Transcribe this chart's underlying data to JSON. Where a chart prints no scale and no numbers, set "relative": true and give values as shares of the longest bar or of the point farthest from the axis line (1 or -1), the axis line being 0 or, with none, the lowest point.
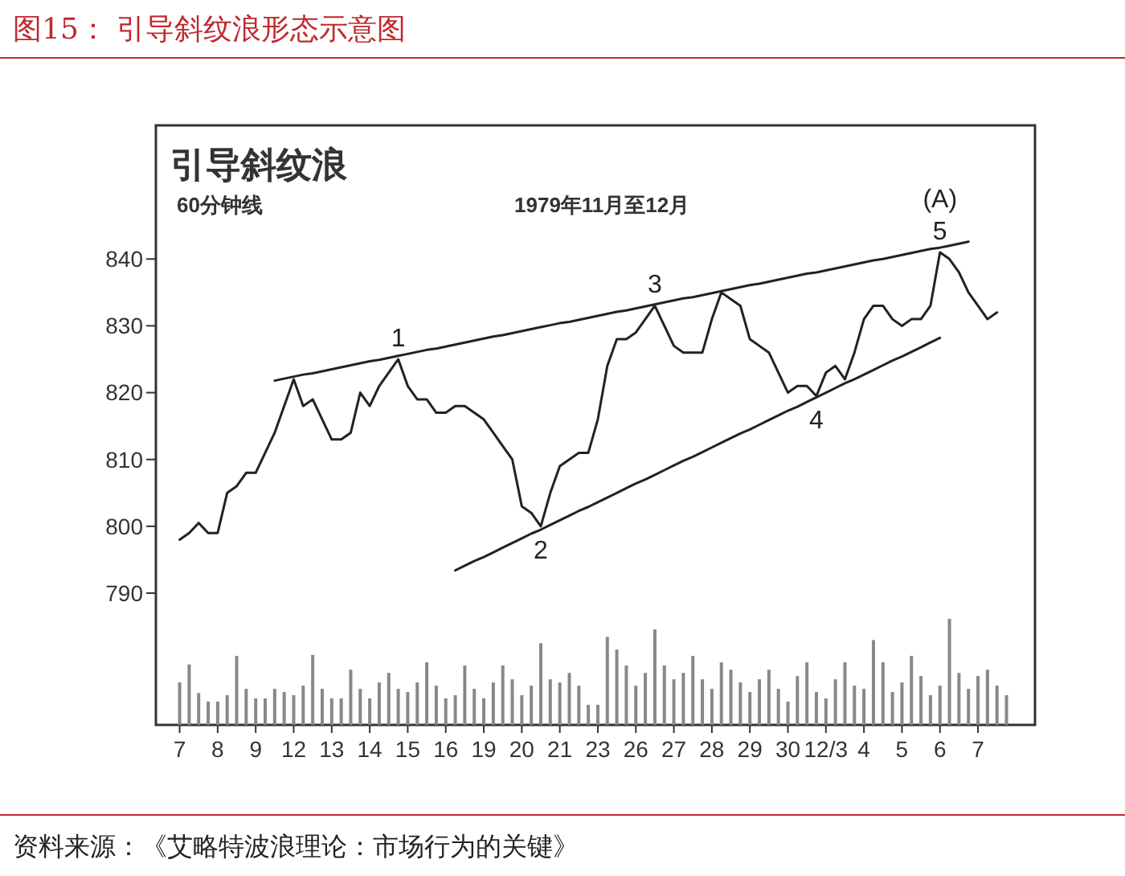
{
  "chart_data": [
    {
      "type": "line",
      "title": "图15：  引导斜纹浪形态示意图",
      "subtitle": "引导斜纹浪",
      "annotations": [
        "60分钟线",
        "1979年11月至12月",
        {
          "text": "1",
          "y": 825
        },
        {
          "text": "2",
          "y": 800
        },
        {
          "text": "3",
          "y": 833
        },
        {
          "text": "4",
          "y": 819.5
        },
        {
          "text": "5",
          "y": 841
        },
        {
          "text": "(A)",
          "y": 841
        },
        "资料来源：《艾略特波浪理论：市场行为的关键》"
      ],
      "categories": [
        "7",
        null,
        null,
        null,
        "8",
        null,
        null,
        null,
        "9",
        null,
        null,
        null,
        "12",
        null,
        null,
        null,
        "13",
        null,
        null,
        null,
        "14",
        null,
        null,
        null,
        "15",
        null,
        null,
        null,
        "16",
        null,
        null,
        null,
        "19",
        null,
        null,
        null,
        "20",
        null,
        null,
        null,
        "21",
        null,
        null,
        null,
        "23",
        null,
        null,
        null,
        "26",
        null,
        null,
        null,
        "27",
        null,
        null,
        null,
        "28",
        null,
        null,
        null,
        "29",
        null,
        null,
        null,
        "30",
        null,
        null,
        null,
        "12/3",
        null,
        null,
        null,
        "4",
        null,
        null,
        null,
        "5",
        null,
        null,
        null,
        "6",
        null,
        null,
        null,
        "7",
        null,
        null,
        null
      ],
      "ylim": [
        790,
        860
      ],
      "yticks": [
        790,
        800,
        810,
        820,
        830,
        840
      ],
      "series": [
        {
          "color": "#222222",
          "values": [
            798,
            799,
            800.5,
            799,
            799,
            805,
            806,
            808,
            808,
            811,
            814,
            818,
            822,
            818,
            819,
            816,
            813,
            813,
            814,
            820,
            818,
            821,
            823,
            825,
            821,
            819,
            819,
            817,
            817,
            818,
            818,
            817,
            816,
            814,
            812,
            810,
            803,
            802,
            800,
            805,
            809,
            810,
            811,
            811,
            816,
            824,
            828,
            828,
            829,
            831,
            833,
            830,
            827,
            826,
            826,
            826,
            831,
            835,
            834,
            833,
            828,
            827,
            826,
            823,
            820,
            821,
            821,
            819.5,
            823,
            824,
            822,
            826,
            831,
            833,
            833,
            831,
            830,
            831,
            831,
            833,
            841,
            840,
            838,
            835,
            833,
            831,
            832,
            null
          ]
        },
        {
          "color": "#222222",
          "values": [
            null,
            null,
            null,
            null,
            null,
            null,
            null,
            null,
            null,
            null,
            821.8,
            822.1,
            822.4,
            822.7,
            822.9,
            823.2,
            823.5,
            823.8,
            824.1,
            824.4,
            824.7,
            824.9,
            825.2,
            825.5,
            825.8,
            826.1,
            826.4,
            826.6,
            826.9,
            827.2,
            827.5,
            827.8,
            828.1,
            828.4,
            828.6,
            828.9,
            829.2,
            829.5,
            829.8,
            830.1,
            830.4,
            830.6,
            830.9,
            831.2,
            831.5,
            831.8,
            832.1,
            832.3,
            832.6,
            832.9,
            833.2,
            833.5,
            833.8,
            834.1,
            834.3,
            834.6,
            834.9,
            835.2,
            835.5,
            835.8,
            836.1,
            836.3,
            836.6,
            836.9,
            837.2,
            837.5,
            837.8,
            838.0,
            838.3,
            838.6,
            838.9,
            839.2,
            839.5,
            839.8,
            840.0,
            840.3,
            840.6,
            840.9,
            841.2,
            841.5,
            841.7,
            842.0,
            842.3,
            842.6,
            null,
            null,
            null,
            null
          ]
        },
        {
          "color": "#222222",
          "values": [
            null,
            null,
            null,
            null,
            null,
            null,
            null,
            null,
            null,
            null,
            null,
            null,
            null,
            null,
            null,
            null,
            null,
            null,
            null,
            null,
            null,
            null,
            null,
            null,
            null,
            null,
            null,
            null,
            null,
            793.4,
            794.1,
            794.8,
            795.4,
            796.1,
            796.8,
            797.5,
            798.2,
            798.9,
            799.5,
            800.2,
            800.9,
            801.6,
            802.3,
            802.9,
            803.6,
            804.3,
            805.0,
            805.7,
            806.4,
            807.0,
            807.7,
            808.4,
            809.1,
            809.8,
            810.4,
            811.1,
            811.8,
            812.5,
            813.2,
            813.9,
            814.5,
            815.2,
            815.9,
            816.6,
            817.3,
            817.9,
            818.6,
            819.3,
            820.0,
            820.7,
            821.4,
            822.0,
            822.7,
            823.4,
            824.1,
            824.8,
            825.4,
            826.1,
            826.8,
            827.5,
            828.2,
            null,
            null,
            null,
            null,
            null,
            null,
            null
          ]
        }
      ]
    },
    {
      "type": "bar",
      "relative": true,
      "color": "#888888",
      "categories": [
        null,
        null,
        null,
        null,
        null,
        null,
        null,
        null,
        null,
        null,
        null,
        null,
        null,
        null,
        null,
        null,
        null,
        null,
        null,
        null,
        null,
        null,
        null,
        null,
        null,
        null,
        null,
        null,
        null,
        null,
        null,
        null,
        null,
        null,
        null,
        null,
        null,
        null,
        null,
        null,
        null,
        null,
        null,
        null,
        null,
        null,
        null,
        null,
        null,
        null,
        null,
        null,
        null,
        null,
        null,
        null,
        null,
        null,
        null,
        null,
        null,
        null,
        null,
        null,
        null,
        null,
        null,
        null,
        null,
        null,
        null,
        null,
        null,
        null,
        null,
        null,
        null,
        null,
        null,
        null,
        null,
        null,
        null,
        null,
        null,
        null,
        null,
        null
      ],
      "values": [
        0.4,
        0.57,
        0.3,
        0.22,
        0.22,
        0.28,
        0.65,
        0.34,
        0.25,
        0.25,
        0.34,
        0.31,
        0.28,
        0.37,
        0.66,
        0.34,
        0.25,
        0.25,
        0.52,
        0.34,
        0.25,
        0.4,
        0.49,
        0.34,
        0.31,
        0.4,
        0.59,
        0.37,
        0.25,
        0.28,
        0.56,
        0.34,
        0.25,
        0.4,
        0.56,
        0.43,
        0.28,
        0.37,
        0.77,
        0.43,
        0.4,
        0.49,
        0.37,
        0.19,
        0.19,
        0.83,
        0.71,
        0.56,
        0.37,
        0.49,
        0.9,
        0.56,
        0.43,
        0.49,
        0.65,
        0.43,
        0.34,
        0.59,
        0.52,
        0.4,
        0.31,
        0.43,
        0.52,
        0.34,
        0.22,
        0.46,
        0.59,
        0.31,
        0.25,
        0.43,
        0.59,
        0.37,
        0.34,
        0.8,
        0.59,
        0.31,
        0.4,
        0.65,
        0.46,
        0.28,
        0.37,
        1,
        0.49,
        0.34,
        0.46,
        0.52,
        0.37,
        0.28
      ]
    }
  ]
}
